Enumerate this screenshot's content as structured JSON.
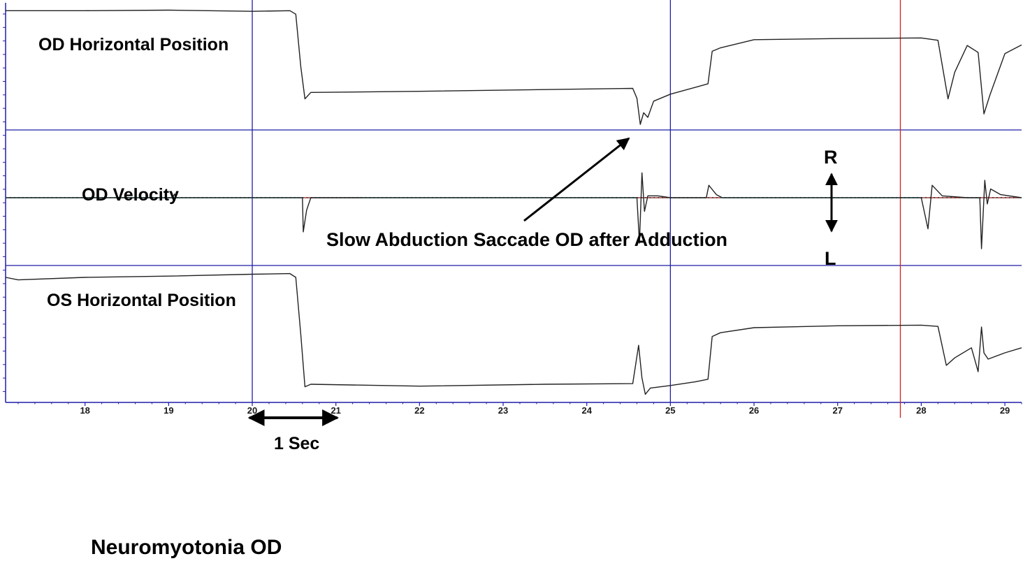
{
  "chart_data": {
    "type": "line",
    "x_axis": {
      "ticks": [
        18,
        19,
        20,
        21,
        22,
        23,
        24,
        25,
        26,
        27,
        28,
        29
      ],
      "tick_labels": [
        "18",
        "19",
        "20",
        "21",
        "22",
        "23",
        "24",
        "25",
        "26",
        "27",
        "28",
        "29"
      ],
      "range": [
        17.05,
        29.2
      ]
    },
    "markers": {
      "blue_vertical": [
        20.0,
        25.0
      ],
      "red_vertical": [
        27.75
      ]
    },
    "colors": {
      "trace": "#222222",
      "frame": "#1f1fa8",
      "marker_red": "#d02020",
      "baseline_cyan": "#33cccc",
      "velocity_segment_red": "#d02020"
    },
    "panels": [
      {
        "id": "od-position",
        "title": "OD Horizontal Position",
        "y_range": [
          -1,
          1
        ],
        "series": [
          {
            "x": 17.05,
            "y": 0.96
          },
          {
            "x": 18.0,
            "y": 0.96
          },
          {
            "x": 19.0,
            "y": 0.97
          },
          {
            "x": 20.0,
            "y": 0.95
          },
          {
            "x": 20.45,
            "y": 0.96
          },
          {
            "x": 20.52,
            "y": 0.9
          },
          {
            "x": 20.58,
            "y": 0.0
          },
          {
            "x": 20.63,
            "y": -0.56
          },
          {
            "x": 20.7,
            "y": -0.45
          },
          {
            "x": 22.0,
            "y": -0.43
          },
          {
            "x": 23.5,
            "y": -0.4
          },
          {
            "x": 24.55,
            "y": -0.38
          },
          {
            "x": 24.6,
            "y": -0.55
          },
          {
            "x": 24.64,
            "y": -1.0
          },
          {
            "x": 24.68,
            "y": -0.8
          },
          {
            "x": 24.73,
            "y": -0.88
          },
          {
            "x": 24.8,
            "y": -0.6
          },
          {
            "x": 25.0,
            "y": -0.48
          },
          {
            "x": 25.3,
            "y": -0.36
          },
          {
            "x": 25.45,
            "y": -0.3
          },
          {
            "x": 25.5,
            "y": 0.26
          },
          {
            "x": 25.6,
            "y": 0.32
          },
          {
            "x": 26.0,
            "y": 0.46
          },
          {
            "x": 27.0,
            "y": 0.48
          },
          {
            "x": 28.0,
            "y": 0.49
          },
          {
            "x": 28.2,
            "y": 0.45
          },
          {
            "x": 28.32,
            "y": -0.56
          },
          {
            "x": 28.4,
            "y": -0.1
          },
          {
            "x": 28.55,
            "y": 0.36
          },
          {
            "x": 28.68,
            "y": 0.24
          },
          {
            "x": 28.75,
            "y": -0.82
          },
          {
            "x": 28.82,
            "y": -0.5
          },
          {
            "x": 29.0,
            "y": 0.22
          },
          {
            "x": 29.2,
            "y": 0.37
          }
        ]
      },
      {
        "id": "od-velocity",
        "title": "OD Velocity",
        "y_range": [
          -1,
          1
        ],
        "series": [
          {
            "x": 17.05,
            "y": 0
          },
          {
            "x": 19.05,
            "y": 0
          },
          {
            "x": 19.07,
            "y": 0.06
          },
          {
            "x": 19.09,
            "y": 0
          },
          {
            "x": 20.6,
            "y": 0
          },
          {
            "x": 20.61,
            "y": -0.55
          },
          {
            "x": 20.65,
            "y": -0.2
          },
          {
            "x": 20.7,
            "y": 0
          },
          {
            "x": 24.6,
            "y": 0
          },
          {
            "x": 24.63,
            "y": -0.73
          },
          {
            "x": 24.66,
            "y": 0.4
          },
          {
            "x": 24.69,
            "y": -0.22
          },
          {
            "x": 24.73,
            "y": 0.03
          },
          {
            "x": 24.85,
            "y": 0.03
          },
          {
            "x": 25.0,
            "y": 0
          },
          {
            "x": 25.43,
            "y": 0
          },
          {
            "x": 25.46,
            "y": 0.2
          },
          {
            "x": 25.55,
            "y": 0.05
          },
          {
            "x": 25.62,
            "y": 0
          },
          {
            "x": 28.0,
            "y": 0
          },
          {
            "x": 28.08,
            "y": -0.5
          },
          {
            "x": 28.13,
            "y": 0.2
          },
          {
            "x": 28.25,
            "y": 0.03
          },
          {
            "x": 28.55,
            "y": 0
          },
          {
            "x": 28.7,
            "y": 0
          },
          {
            "x": 28.72,
            "y": -0.82
          },
          {
            "x": 28.76,
            "y": 0.28
          },
          {
            "x": 28.79,
            "y": -0.1
          },
          {
            "x": 28.83,
            "y": 0.14
          },
          {
            "x": 28.95,
            "y": 0.05
          },
          {
            "x": 29.2,
            "y": 0
          }
        ]
      },
      {
        "id": "os-position",
        "title": "OS Horizontal Position",
        "y_range": [
          -1,
          1
        ],
        "series": [
          {
            "x": 17.05,
            "y": 0.9
          },
          {
            "x": 17.2,
            "y": 0.86
          },
          {
            "x": 18.0,
            "y": 0.9
          },
          {
            "x": 19.0,
            "y": 0.92
          },
          {
            "x": 20.0,
            "y": 0.95
          },
          {
            "x": 20.45,
            "y": 0.96
          },
          {
            "x": 20.52,
            "y": 0.9
          },
          {
            "x": 20.58,
            "y": 0.0
          },
          {
            "x": 20.63,
            "y": -0.84
          },
          {
            "x": 20.7,
            "y": -0.8
          },
          {
            "x": 22.0,
            "y": -0.83
          },
          {
            "x": 23.5,
            "y": -0.8
          },
          {
            "x": 24.55,
            "y": -0.79
          },
          {
            "x": 24.62,
            "y": -0.18
          },
          {
            "x": 24.66,
            "y": -0.7
          },
          {
            "x": 24.7,
            "y": -0.96
          },
          {
            "x": 24.76,
            "y": -0.86
          },
          {
            "x": 25.0,
            "y": -0.82
          },
          {
            "x": 25.3,
            "y": -0.76
          },
          {
            "x": 25.45,
            "y": -0.72
          },
          {
            "x": 25.5,
            "y": -0.04
          },
          {
            "x": 25.6,
            "y": 0.02
          },
          {
            "x": 26.0,
            "y": 0.1
          },
          {
            "x": 27.0,
            "y": 0.13
          },
          {
            "x": 28.0,
            "y": 0.14
          },
          {
            "x": 28.2,
            "y": 0.12
          },
          {
            "x": 28.3,
            "y": -0.5
          },
          {
            "x": 28.4,
            "y": -0.38
          },
          {
            "x": 28.6,
            "y": -0.22
          },
          {
            "x": 28.68,
            "y": -0.6
          },
          {
            "x": 28.72,
            "y": 0.11
          },
          {
            "x": 28.75,
            "y": -0.3
          },
          {
            "x": 28.8,
            "y": -0.4
          },
          {
            "x": 29.0,
            "y": -0.3
          },
          {
            "x": 29.2,
            "y": -0.22
          }
        ]
      }
    ],
    "annotations": {
      "arrow_label": "Slow Abduction Saccade OD after Adduction",
      "direction_top": "R",
      "direction_bottom": "L",
      "scale_bar_label": "1 Sec",
      "scale_bar_x": [
        20.0,
        21.0
      ],
      "caption": "Neuromyotonia OD"
    }
  }
}
